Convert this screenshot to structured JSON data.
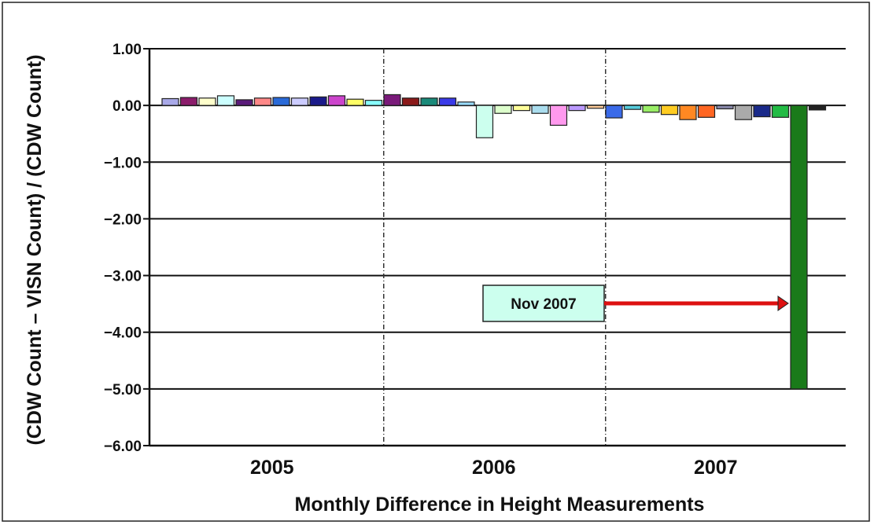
{
  "chart_data": {
    "type": "bar",
    "title": "",
    "xlabel": "Monthly Difference in Height Measurements",
    "ylabel": "(CDW Count – VISN Count) / (CDW Count)",
    "ylim": [
      -6.0,
      1.0
    ],
    "y_ticks": [
      1.0,
      0.0,
      -1.0,
      -2.0,
      -3.0,
      -4.0,
      -5.0,
      -6.0
    ],
    "y_tick_labels": [
      "1.00",
      "0.00",
      "−1.00",
      "−2.00",
      "−3.00",
      "−4.00",
      "−5.00",
      "−6.00"
    ],
    "grid": true,
    "year_groups": [
      "2005",
      "2006",
      "2007"
    ],
    "months_per_year": 12,
    "values": [
      0.12,
      0.14,
      0.13,
      0.17,
      0.1,
      0.13,
      0.14,
      0.13,
      0.15,
      0.17,
      0.11,
      0.09,
      0.19,
      0.13,
      0.13,
      0.13,
      0.06,
      -0.57,
      -0.14,
      -0.09,
      -0.14,
      -0.35,
      -0.09,
      -0.05,
      -0.22,
      -0.07,
      -0.12,
      -0.16,
      -0.25,
      -0.21,
      -0.06,
      -0.25,
      -0.2,
      -0.21,
      -5.0,
      -0.08
    ],
    "bar_colors": [
      "#a9a9e8",
      "#8b1c6b",
      "#ffffcc",
      "#ccffff",
      "#5a1a7a",
      "#ff8888",
      "#2a6ad8",
      "#ccccff",
      "#1a1a8a",
      "#cc44cc",
      "#ffff66",
      "#88ffff",
      "#7a1a7a",
      "#8b1a1a",
      "#1a8a7a",
      "#3a3ae8",
      "#99ddff",
      "#ccffee",
      "#ddffcc",
      "#ffff99",
      "#aaddee",
      "#ff99ee",
      "#bb99ff",
      "#ffcc99",
      "#3a6ae8",
      "#55ccdd",
      "#99ee66",
      "#ffcc22",
      "#ff8822",
      "#ff6622",
      "#8888aa",
      "#aaaaaa",
      "#1a2a8a",
      "#22bb44",
      "#1a7a1a",
      "#222222"
    ],
    "annotation": {
      "text": "Nov 2007",
      "target_index": 34,
      "box_color": "#ccffee",
      "arrow_color": "#dd1111"
    }
  }
}
